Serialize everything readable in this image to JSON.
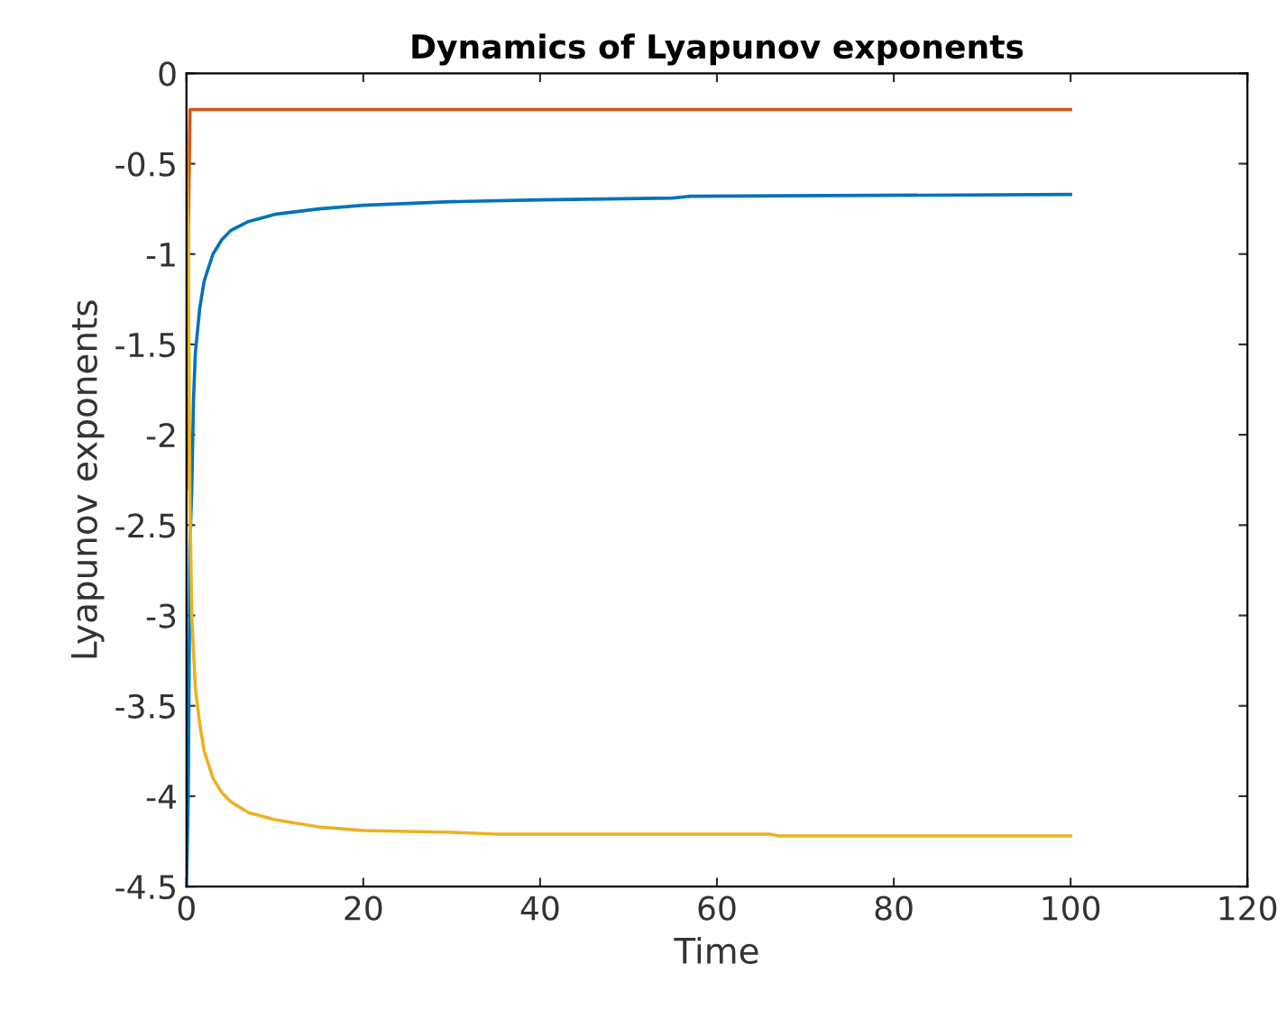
{
  "chart_data": {
    "type": "line",
    "title": "Dynamics of Lyapunov exponents",
    "xlabel": "Time",
    "ylabel": "Lyapunov exponents",
    "xlim": [
      0,
      120
    ],
    "xticks": [
      0,
      20,
      40,
      60,
      80,
      100,
      120
    ],
    "ylim": [
      -4.5,
      0
    ],
    "yticks": [
      -4.5,
      -4,
      -3.5,
      -3,
      -2.5,
      -2,
      -1.5,
      -1,
      -0.5,
      0
    ],
    "grid": false,
    "legend": false,
    "marker": "none",
    "line_style": "solid",
    "series": [
      {
        "color": "#0072bd",
        "x": [
          0,
          0.2,
          0.4,
          0.6,
          0.8,
          1,
          1.5,
          2,
          3,
          4,
          5,
          7,
          10,
          15,
          20,
          30,
          40,
          55,
          57,
          100
        ],
        "values": [
          -4.5,
          -4.0,
          -2.6,
          -2.3,
          -1.8,
          -1.55,
          -1.3,
          -1.15,
          -1.0,
          -0.92,
          -0.87,
          -0.82,
          -0.78,
          -0.75,
          -0.73,
          -0.71,
          -0.7,
          -0.69,
          -0.68,
          -0.67
        ]
      },
      {
        "color": "#d95319",
        "x": [
          0,
          0.2,
          0.4,
          100
        ],
        "values": [
          -2.3,
          -0.9,
          -0.2,
          -0.2
        ]
      },
      {
        "color": "#edb120",
        "x": [
          0,
          0.2,
          0.4,
          0.6,
          1,
          1.5,
          2,
          3,
          4,
          5,
          7,
          10,
          15,
          20,
          30,
          35,
          66,
          67,
          100
        ],
        "values": [
          -0.4,
          -1.0,
          -2.4,
          -3.0,
          -3.4,
          -3.6,
          -3.75,
          -3.9,
          -3.98,
          -4.03,
          -4.09,
          -4.13,
          -4.17,
          -4.19,
          -4.2,
          -4.21,
          -4.21,
          -4.22,
          -4.22
        ]
      }
    ]
  }
}
